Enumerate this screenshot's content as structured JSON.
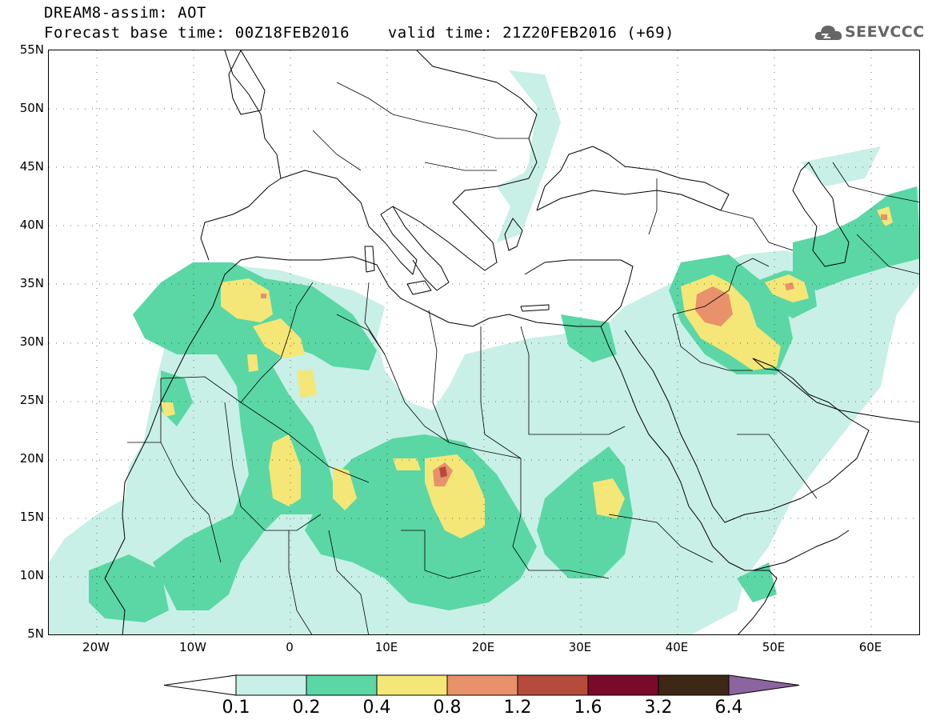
{
  "header": {
    "title": "DREAM8-assim: AOT",
    "base_time": "Forecast base time: 00Z18FEB2016",
    "valid_time": "valid time: 21Z20FEB2016 (+69)"
  },
  "logo": {
    "text": "SEEVCCC",
    "icon": "cloud-icon"
  },
  "map": {
    "lat_labels": [
      "55N",
      "50N",
      "45N",
      "40N",
      "35N",
      "30N",
      "25N",
      "20N",
      "15N",
      "10N",
      "5N"
    ],
    "lon_labels": [
      "20W",
      "10W",
      "0",
      "10E",
      "20E",
      "30E",
      "40E",
      "50E",
      "60E"
    ],
    "lat_range": [
      5,
      55
    ],
    "lon_range": [
      -25,
      65
    ]
  },
  "colorbar": {
    "labels": [
      "0.1",
      "0.2",
      "0.4",
      "0.8",
      "1.2",
      "1.6",
      "3.2",
      "6.4"
    ],
    "colors": [
      "#c8f0e6",
      "#5ad7a5",
      "#f5e678",
      "#e8916b",
      "#b44b3c",
      "#7a0a2a",
      "#3c2814",
      "#8c64a0"
    ],
    "under_color": "#ffffff",
    "over_color": "#8c64a0"
  }
}
